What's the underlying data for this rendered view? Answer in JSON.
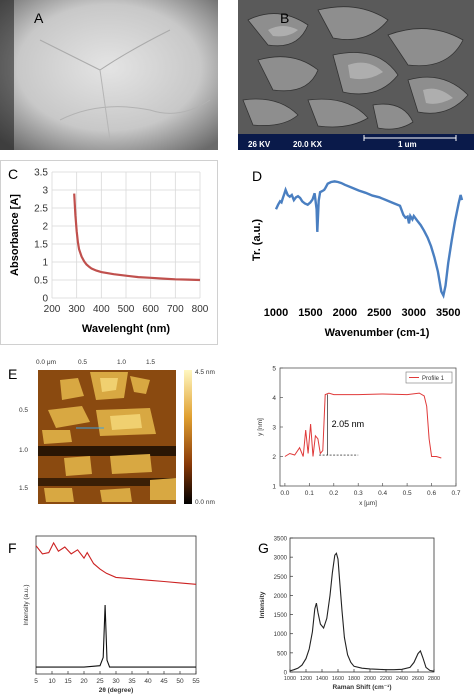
{
  "panel_labels": {
    "A": "A",
    "B": "B",
    "C": "C",
    "D": "D",
    "E": "E",
    "F": "F",
    "G": "G"
  },
  "sem": {
    "kv": "26 KV",
    "mag": "20.0 KX",
    "scale": "1 um"
  },
  "afm": {
    "x_ticks": [
      "0.0 μm",
      "0.5",
      "1.0",
      "1.5"
    ],
    "y_ticks": [
      "0.5",
      "1.0",
      "1.5"
    ],
    "colorbar_max": "4.5 nm",
    "colorbar_min": "0.0 nm"
  },
  "chart_data": [
    {
      "id": "C",
      "type": "line",
      "xlabel": "Wavelenght (nm)",
      "ylabel": "Absorbance [A]",
      "xlim": [
        200,
        800
      ],
      "ylim": [
        0,
        3.5
      ],
      "x_ticks": [
        200,
        300,
        400,
        500,
        600,
        700,
        800
      ],
      "y_ticks": [
        0,
        0.5,
        1,
        1.5,
        2,
        2.5,
        3,
        3.5
      ],
      "y_tick_labels": [
        "0",
        "0.5",
        "1",
        "1.5",
        "2",
        "2.5",
        "3",
        "3.5"
      ],
      "grid": true,
      "color": "#c0504d",
      "x": [
        290,
        295,
        300,
        305,
        310,
        320,
        330,
        340,
        350,
        360,
        380,
        400,
        450,
        500,
        550,
        600,
        650,
        700,
        750,
        800
      ],
      "y": [
        2.9,
        2.3,
        1.85,
        1.55,
        1.35,
        1.15,
        1.02,
        0.93,
        0.87,
        0.82,
        0.76,
        0.72,
        0.66,
        0.62,
        0.58,
        0.56,
        0.54,
        0.52,
        0.51,
        0.5
      ]
    },
    {
      "id": "D",
      "type": "line",
      "xlabel": "Wavenumber (cm-1)",
      "ylabel": "Tr. (a.u.)",
      "xlim": [
        1000,
        3700
      ],
      "x_ticks": [
        1000,
        1500,
        2000,
        2500,
        3000,
        3500
      ],
      "grid": false,
      "color": "#4a7fc1",
      "x": [
        1000,
        1030,
        1060,
        1080,
        1100,
        1120,
        1140,
        1170,
        1200,
        1230,
        1260,
        1290,
        1320,
        1350,
        1380,
        1420,
        1460,
        1500,
        1530,
        1560,
        1590,
        1600,
        1620,
        1640,
        1670,
        1700,
        1720,
        1750,
        1800,
        1850,
        1900,
        1950,
        2000,
        2100,
        2200,
        2300,
        2400,
        2500,
        2600,
        2700,
        2800,
        2850,
        2880,
        2910,
        2930,
        2950,
        2980,
        3000,
        3050,
        3100,
        3150,
        3200,
        3250,
        3300,
        3350,
        3400,
        3430,
        3460,
        3500,
        3550,
        3600,
        3650,
        3680,
        3700
      ],
      "y": [
        0.5,
        0.58,
        0.64,
        0.62,
        0.7,
        0.77,
        0.84,
        0.75,
        0.72,
        0.75,
        0.66,
        0.71,
        0.73,
        0.7,
        0.64,
        0.6,
        0.58,
        0.62,
        0.67,
        0.78,
        0.5,
        0.1,
        0.65,
        0.8,
        0.82,
        0.84,
        0.88,
        0.95,
        0.98,
        0.99,
        0.98,
        0.96,
        0.93,
        0.88,
        0.83,
        0.79,
        0.74,
        0.71,
        0.66,
        0.61,
        0.56,
        0.4,
        0.35,
        0.37,
        0.25,
        0.38,
        0.32,
        0.38,
        0.3,
        0.22,
        0.12,
        0.0,
        -0.15,
        -0.35,
        -0.6,
        -0.95,
        -1.02,
        -0.85,
        -0.45,
        -0.05,
        0.3,
        0.6,
        0.75,
        0.66
      ]
    },
    {
      "id": "E-profile",
      "type": "line",
      "legend": [
        "Profile 1"
      ],
      "legend_position": "top-right",
      "xlabel": "x [µm]",
      "ylabel": "y [nm]",
      "xlim": [
        -0.02,
        0.7
      ],
      "ylim": [
        1,
        5
      ],
      "x_ticks": [
        0,
        0.1,
        0.2,
        0.3,
        0.4,
        0.5,
        0.6,
        0.7
      ],
      "x_tick_labels": [
        "0.0",
        "0.1",
        "0.2",
        "0.3",
        "0.4",
        "0.5",
        "0.6",
        "0.7"
      ],
      "y_ticks": [
        1,
        2,
        3,
        4,
        5
      ],
      "y_tick_labels": [
        "1",
        "2",
        "3",
        "4",
        "5"
      ],
      "annotation": "2.05 nm",
      "color": "#e03a3a",
      "x": [
        0.0,
        0.02,
        0.04,
        0.06,
        0.075,
        0.085,
        0.095,
        0.105,
        0.115,
        0.125,
        0.135,
        0.145,
        0.155,
        0.165,
        0.18,
        0.2,
        0.3,
        0.4,
        0.5,
        0.55,
        0.57,
        0.58,
        0.59,
        0.6,
        0.62,
        0.64
      ],
      "y": [
        2.0,
        2.1,
        2.05,
        2.3,
        2.0,
        2.9,
        2.1,
        3.1,
        2.0,
        2.7,
        2.6,
        2.1,
        2.2,
        4.1,
        4.15,
        4.1,
        4.1,
        4.12,
        4.1,
        4.15,
        4.05,
        3.7,
        2.6,
        2.0,
        2.0,
        1.95
      ]
    },
    {
      "id": "F",
      "type": "line",
      "xlabel": "2θ (degree)",
      "ylabel": "Intensity (a.u.)",
      "xlim": [
        5,
        55
      ],
      "x_ticks": [
        5,
        10,
        15,
        20,
        25,
        30,
        35,
        40,
        45,
        50,
        55
      ],
      "series": [
        {
          "color": "#cc2222",
          "x": [
            5,
            7,
            9,
            10.5,
            12,
            14,
            16,
            18,
            20,
            21,
            23,
            25,
            27,
            30,
            35,
            40,
            45,
            50,
            55
          ],
          "y": [
            0.93,
            0.87,
            0.88,
            0.95,
            0.89,
            0.92,
            0.87,
            0.9,
            0.84,
            0.88,
            0.8,
            0.76,
            0.73,
            0.7,
            0.69,
            0.68,
            0.67,
            0.66,
            0.65
          ]
        },
        {
          "color": "#111111",
          "x": [
            5,
            10,
            15,
            20,
            25,
            26,
            26.6,
            27.2,
            28,
            30,
            35,
            40,
            45,
            50,
            55
          ],
          "y": [
            0.05,
            0.05,
            0.05,
            0.05,
            0.06,
            0.12,
            0.5,
            0.1,
            0.05,
            0.05,
            0.05,
            0.05,
            0.05,
            0.05,
            0.05
          ]
        }
      ]
    },
    {
      "id": "G",
      "type": "line",
      "xlabel": "Raman Shift (cm⁻¹)",
      "ylabel": "Intensity",
      "xlim": [
        1000,
        2800
      ],
      "ylim": [
        0,
        3500
      ],
      "x_ticks": [
        1000,
        1200,
        1400,
        1600,
        1800,
        2000,
        2200,
        2400,
        2600,
        2800
      ],
      "y_ticks": [
        0,
        500,
        1000,
        1500,
        2000,
        2500,
        3000,
        3500
      ],
      "color": "#222222",
      "x": [
        1000,
        1050,
        1100,
        1150,
        1200,
        1240,
        1280,
        1310,
        1330,
        1350,
        1380,
        1420,
        1460,
        1500,
        1530,
        1560,
        1580,
        1600,
        1620,
        1650,
        1680,
        1720,
        1760,
        1800,
        1900,
        2000,
        2100,
        2200,
        2300,
        2400,
        2500,
        2550,
        2600,
        2630,
        2660,
        2700,
        2750,
        2800
      ],
      "y": [
        30,
        60,
        100,
        180,
        350,
        600,
        1050,
        1650,
        1800,
        1550,
        1250,
        1150,
        1400,
        2000,
        2600,
        3050,
        3100,
        2950,
        2400,
        1600,
        900,
        450,
        250,
        150,
        100,
        80,
        70,
        60,
        60,
        70,
        120,
        250,
        480,
        550,
        380,
        120,
        40,
        20
      ]
    }
  ]
}
